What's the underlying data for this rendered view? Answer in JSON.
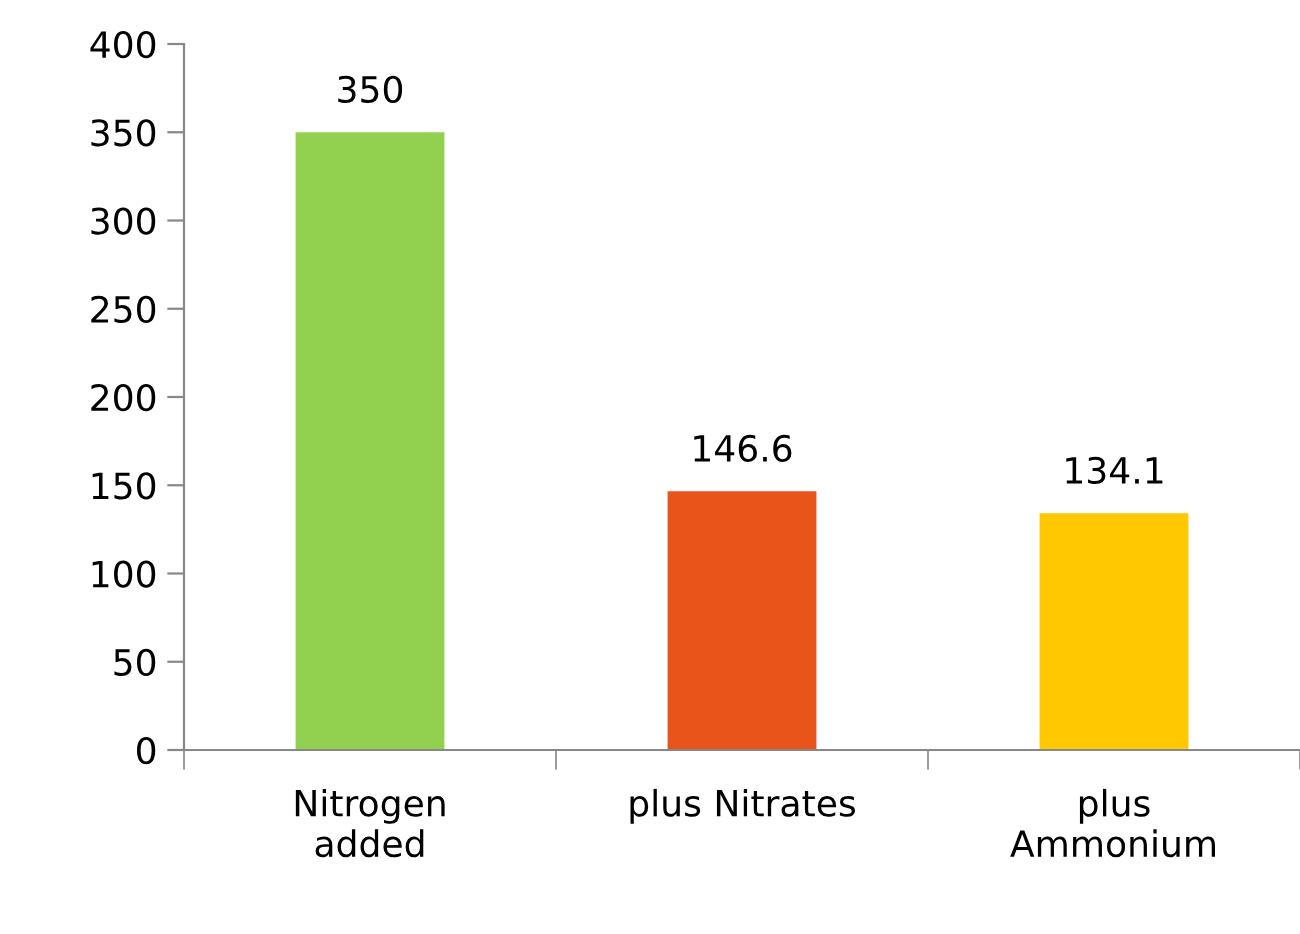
{
  "chart_data": {
    "type": "bar",
    "categories": [
      "Nitrogen\nadded",
      "plus Nitrates",
      "plus\nAmmonium"
    ],
    "values": [
      350,
      146.6,
      134.1
    ],
    "colors": [
      "#92d050",
      "#e8541a",
      "#ffc800"
    ],
    "ylim": [
      0,
      400
    ],
    "yticks": [
      0,
      50,
      100,
      150,
      200,
      250,
      300,
      350,
      400
    ],
    "grid": false,
    "data_labels": true
  }
}
